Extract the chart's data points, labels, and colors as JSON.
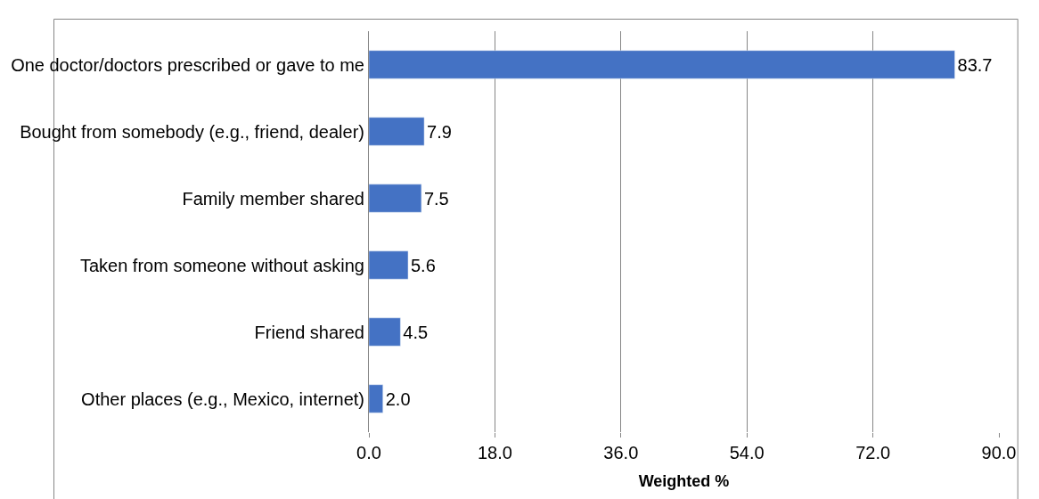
{
  "chart_data": {
    "type": "bar",
    "orientation": "horizontal",
    "xlabel": "Weighted %",
    "categories": [
      "One doctor/doctors prescribed or gave to me",
      "Bought from somebody (e.g., friend, dealer)",
      "Family member shared",
      "Taken from someone without asking",
      "Friend shared",
      "Other places (e.g., Mexico, internet)"
    ],
    "values": [
      83.7,
      7.9,
      7.5,
      5.6,
      4.5,
      2.0
    ],
    "value_labels": [
      "83.7",
      "7.9",
      "7.5",
      "5.6",
      "4.5",
      "2.0"
    ],
    "color": "#4472c4",
    "xlim": [
      0,
      90
    ],
    "xticks": [
      {
        "value": 0,
        "label": "0.0"
      },
      {
        "value": 18,
        "label": "18.0"
      },
      {
        "value": 36,
        "label": "36.0"
      },
      {
        "value": 54,
        "label": "54.0"
      },
      {
        "value": 72,
        "label": "72.0"
      },
      {
        "value": 90,
        "label": "90.0"
      }
    ],
    "grid": "x",
    "legend": false
  }
}
